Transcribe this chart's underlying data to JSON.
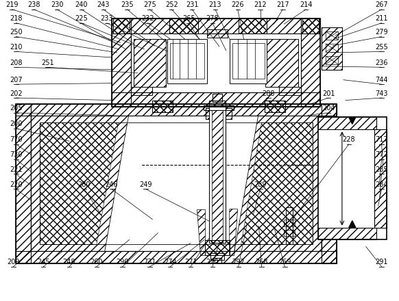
{
  "bg_color": "#ffffff",
  "line_color": "#000000",
  "fig_width": 5.82,
  "fig_height": 4.4,
  "dpi": 100,
  "font_size": 7.0
}
